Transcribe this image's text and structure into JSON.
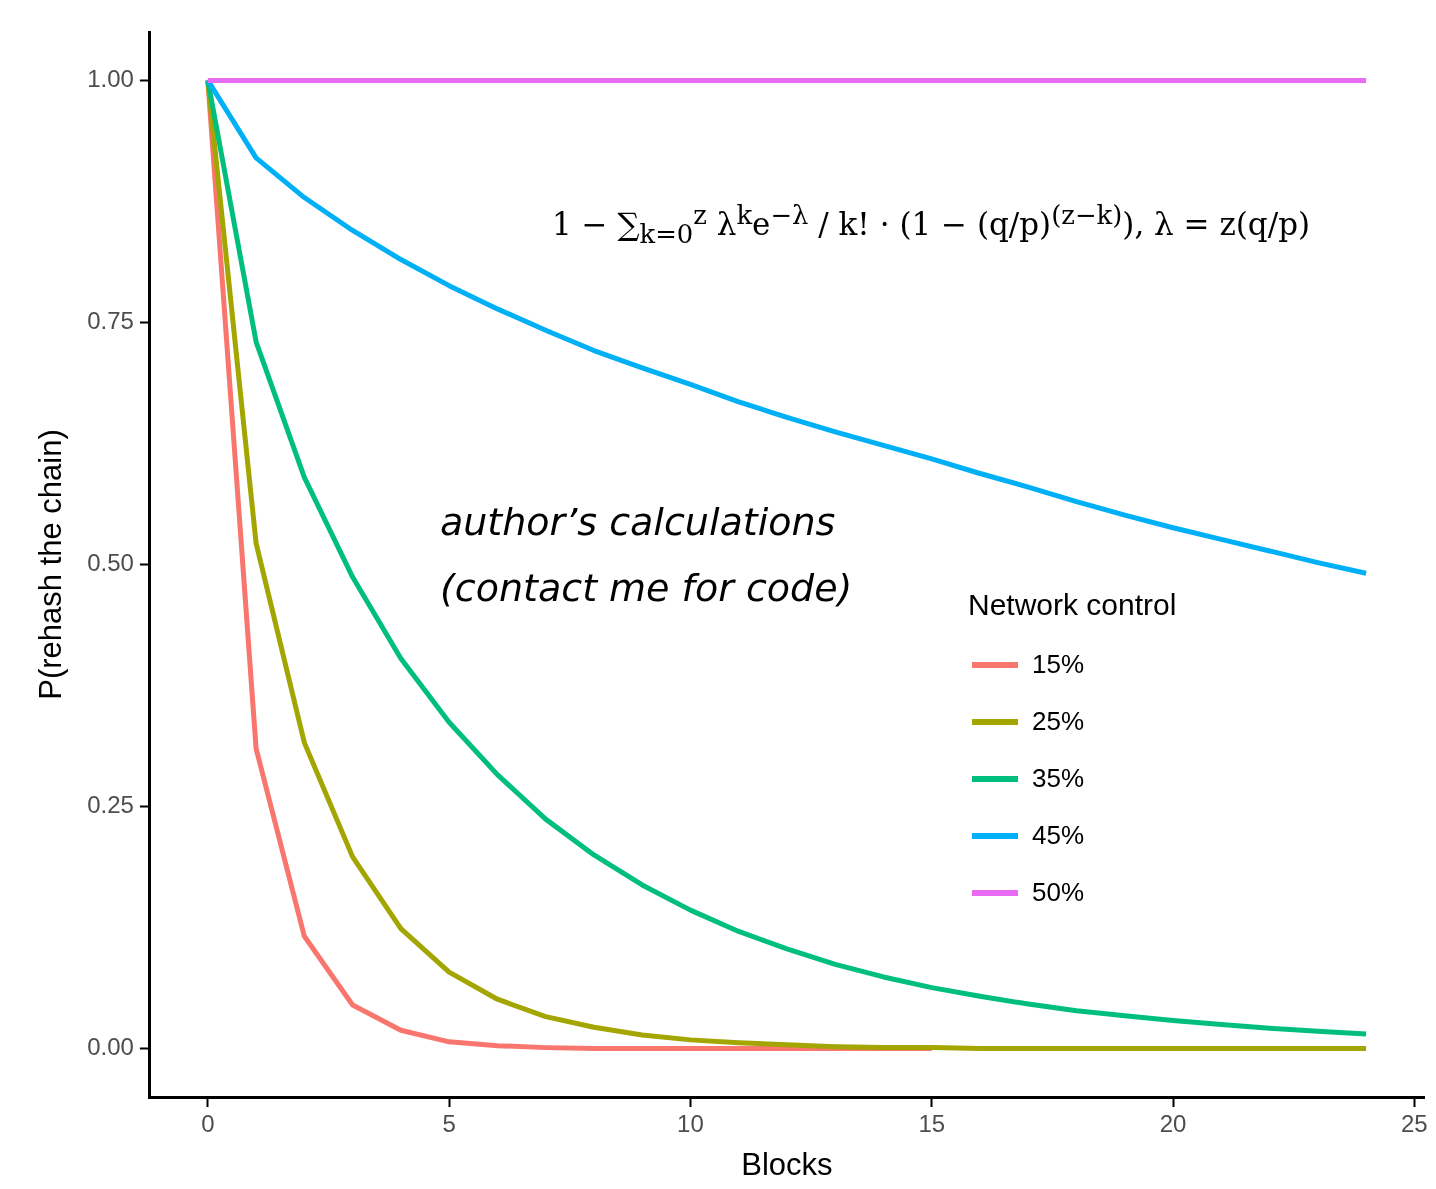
{
  "chart_data": {
    "type": "line",
    "xlabel": "Blocks",
    "ylabel": "P(rehash the chain)",
    "legend_title": "Network control",
    "x": [
      0,
      1,
      2,
      3,
      4,
      5,
      6,
      7,
      8,
      9,
      10,
      11,
      12,
      13,
      14,
      15,
      16,
      17,
      18,
      19,
      20,
      21,
      22,
      23,
      24
    ],
    "series": [
      {
        "name": "15%",
        "color": "#f8766d",
        "values": [
          1,
          0.31,
          0.116,
          0.045,
          0.019,
          0.007,
          0.003,
          0.001,
          0,
          0,
          0,
          0,
          0,
          0,
          0,
          0,
          null,
          null,
          null,
          null,
          null,
          null,
          null,
          null,
          null
        ]
      },
      {
        "name": "25%",
        "color": "#a3a500",
        "values": [
          1,
          0.522,
          0.316,
          0.198,
          0.124,
          0.079,
          0.051,
          0.033,
          0.022,
          0.014,
          0.009,
          0.006,
          0.004,
          0.002,
          0.001,
          0.001,
          0,
          0,
          0,
          0,
          0,
          0,
          0,
          0,
          0
        ]
      },
      {
        "name": "35%",
        "color": "#00bf7d",
        "values": [
          1,
          0.73,
          0.59,
          0.487,
          0.403,
          0.337,
          0.283,
          0.237,
          0.2,
          0.169,
          0.143,
          0.121,
          0.103,
          0.087,
          0.074,
          0.063,
          0.054,
          0.046,
          0.039,
          0.034,
          0.029,
          0.025,
          0.021,
          0.018,
          0.015
        ]
      },
      {
        "name": "45%",
        "color": "#00b0f6",
        "values": [
          1,
          0.92,
          0.879,
          0.845,
          0.815,
          0.788,
          0.764,
          0.742,
          0.721,
          0.703,
          0.686,
          0.668,
          0.652,
          0.637,
          0.623,
          0.609,
          0.594,
          0.58,
          0.565,
          0.551,
          0.538,
          0.526,
          0.514,
          0.502,
          0.491
        ]
      },
      {
        "name": "50%",
        "color": "#e76bf3",
        "values": [
          1,
          1,
          1,
          1,
          1,
          1,
          1,
          1,
          1,
          1,
          1,
          1,
          1,
          1,
          1,
          1,
          1,
          1,
          1,
          1,
          1,
          1,
          1,
          1,
          1
        ]
      }
    ],
    "xlim": [
      -1.2,
      25.2
    ],
    "ylim": [
      -0.05,
      1.05
    ],
    "xticks": [
      0,
      5,
      10,
      15,
      20,
      25
    ],
    "yticks": [
      {
        "value": 0,
        "label": "0.00"
      },
      {
        "value": 0.25,
        "label": "0.25"
      },
      {
        "value": 0.5,
        "label": "0.50"
      },
      {
        "value": 0.75,
        "label": "0.75"
      },
      {
        "value": 1,
        "label": "1.00"
      }
    ],
    "grid": false,
    "legend": "right",
    "line_style": "solid",
    "annotations": [
      "1 − ∑$_{k=0}$$^{z}$ λ$^{k}$e$^{−λ}$ / k! · (1 − (q/p)$^{(z−k)}$),  λ = z(q/p)",
      "author’s calculations",
      "(contact me for code)"
    ]
  }
}
